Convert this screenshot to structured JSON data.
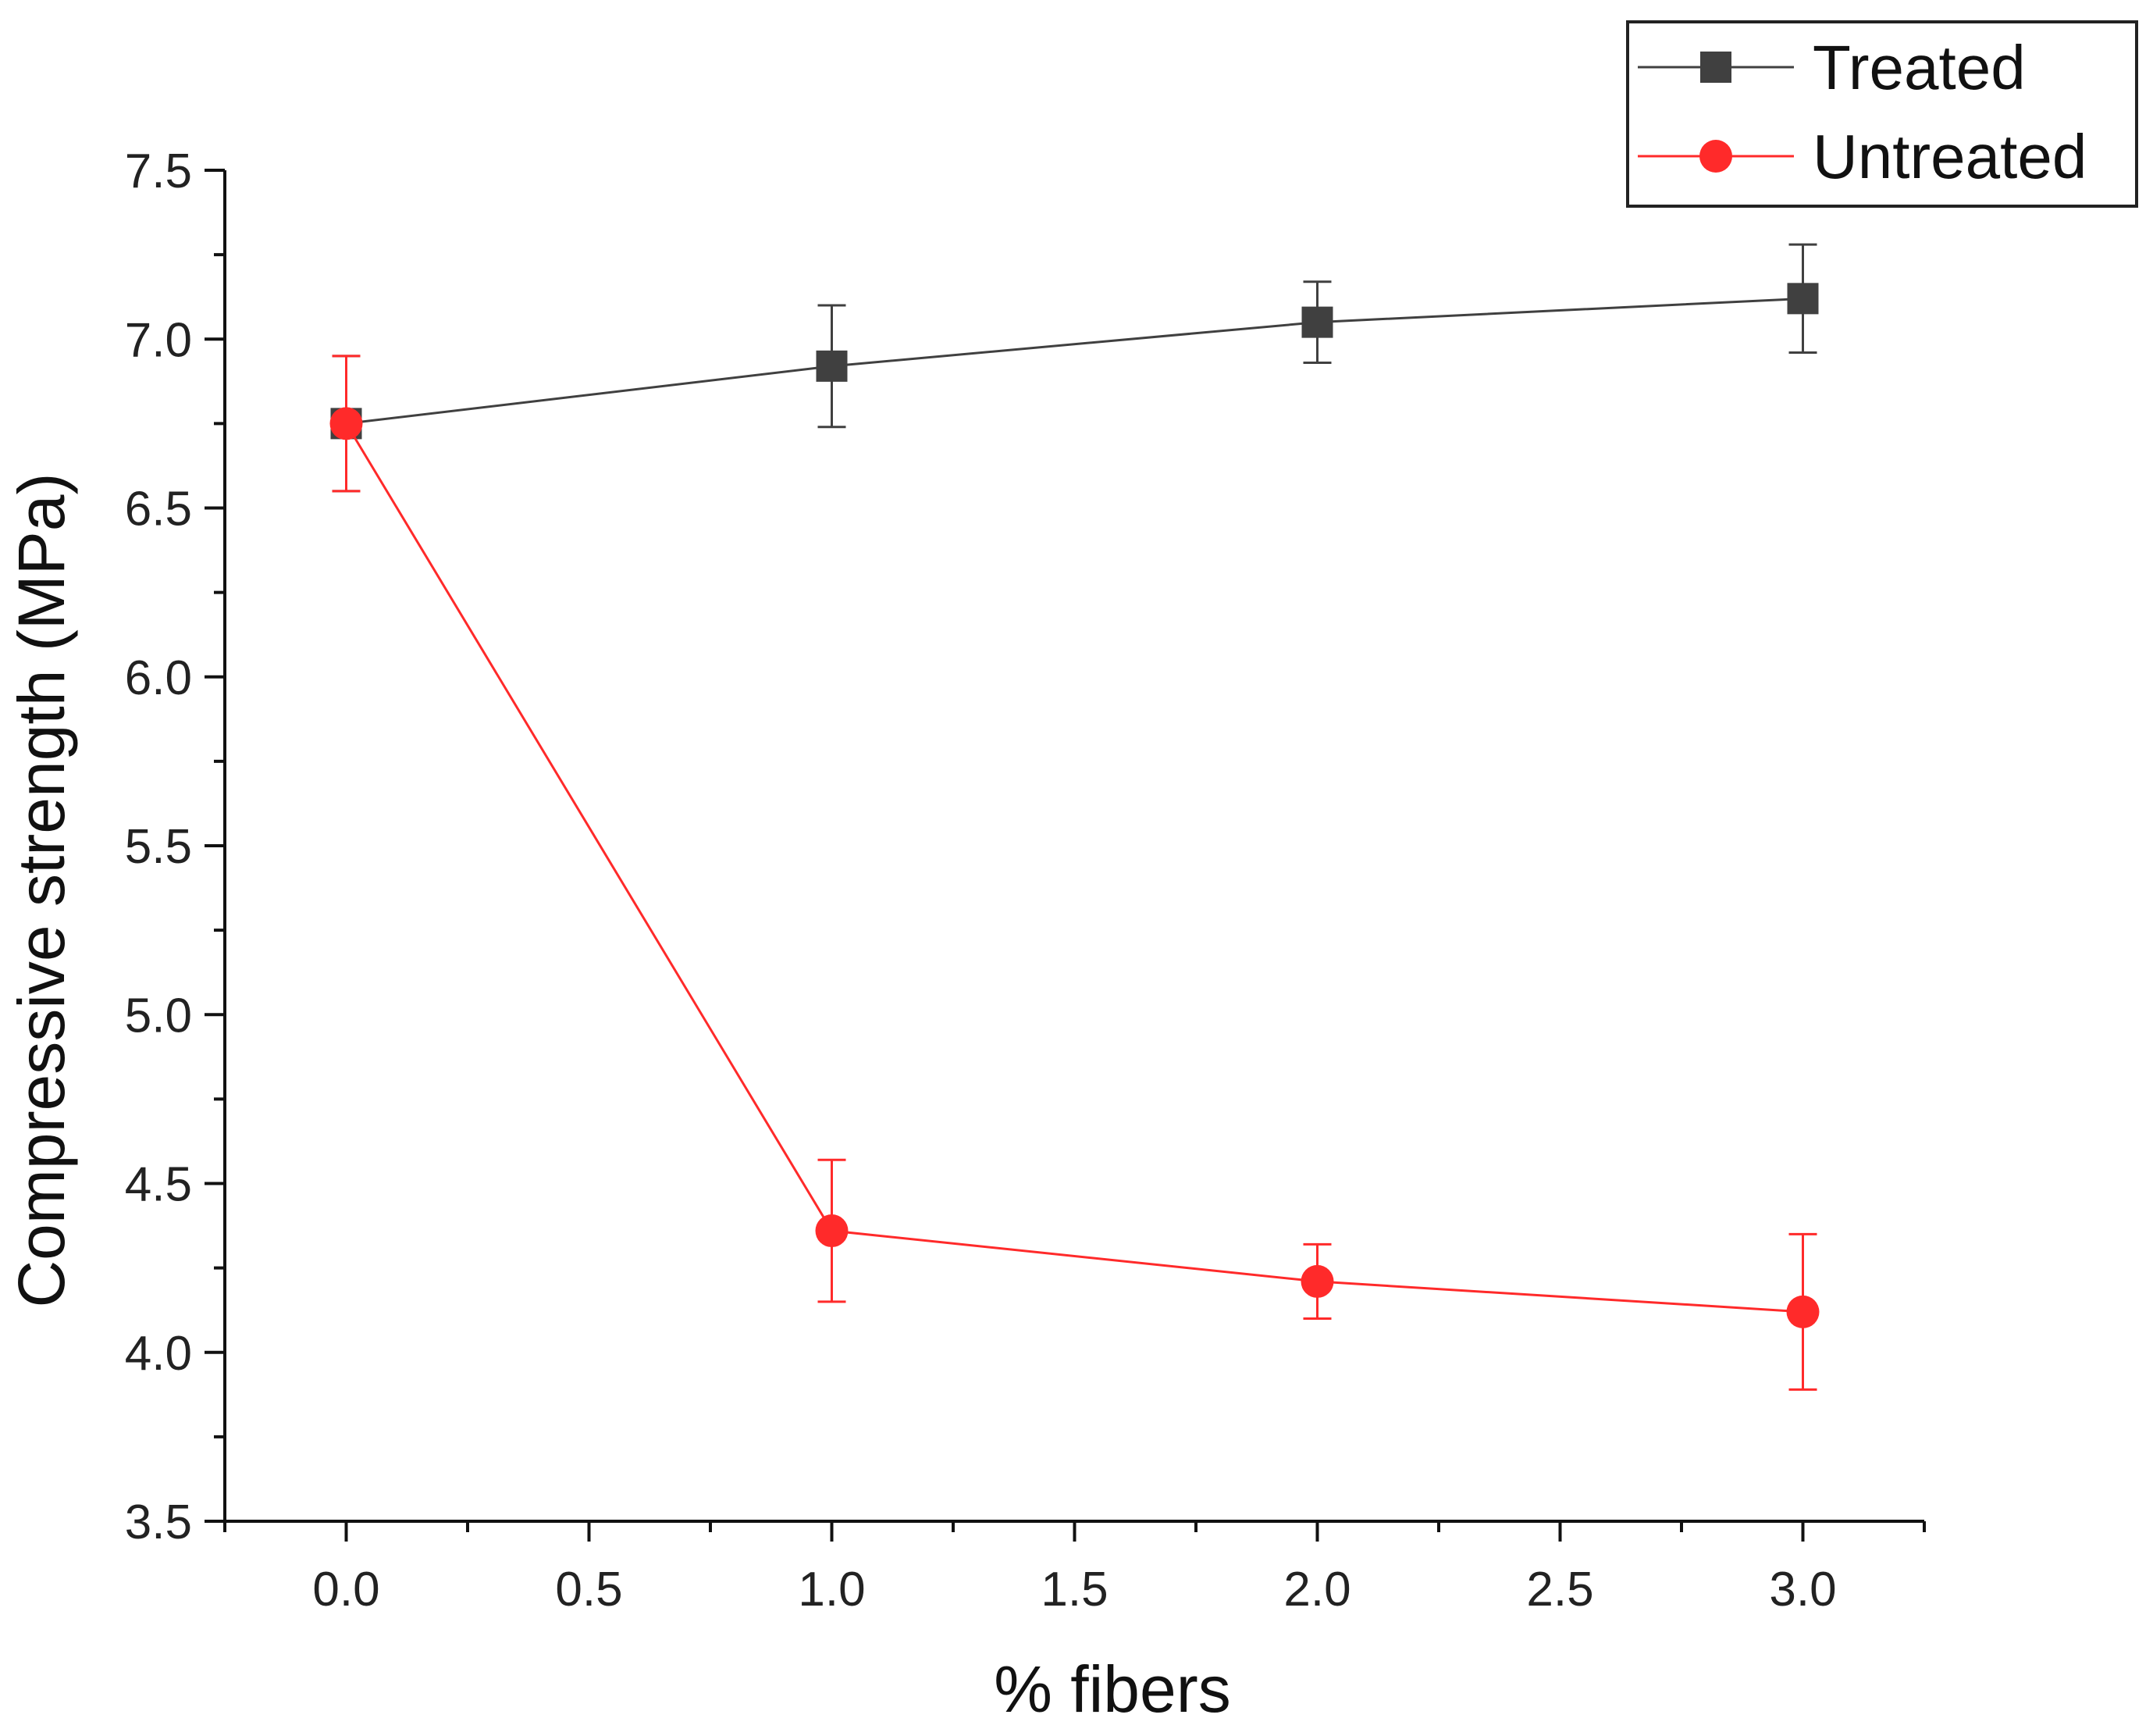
{
  "chart_data": {
    "type": "line",
    "title": "",
    "xlabel": "% fibers",
    "ylabel": "Compressive strength (MPa)",
    "xlim": [
      -0.25,
      3.25
    ],
    "ylim": [
      3.5,
      7.5
    ],
    "x_ticks": [
      "0.0",
      "0.5",
      "1.0",
      "1.5",
      "2.0",
      "2.5",
      "3.0"
    ],
    "x_tick_values": [
      0.0,
      0.5,
      1.0,
      1.5,
      2.0,
      2.5,
      3.0
    ],
    "y_ticks": [
      "3.5",
      "4.0",
      "4.5",
      "5.0",
      "5.5",
      "6.0",
      "6.5",
      "7.0",
      "7.5"
    ],
    "y_tick_values": [
      3.5,
      4.0,
      4.5,
      5.0,
      5.5,
      6.0,
      6.5,
      7.0,
      7.5
    ],
    "legend_position": "top-right",
    "grid": false,
    "series": [
      {
        "name": "Treated",
        "color": "#404040",
        "marker": "square",
        "x": [
          0,
          1,
          2,
          3
        ],
        "values": [
          6.75,
          6.92,
          7.05,
          7.12
        ],
        "errors": [
          0.2,
          0.18,
          0.12,
          0.16
        ]
      },
      {
        "name": "Untreated",
        "color": "#ff2a2a",
        "marker": "circle",
        "x": [
          0,
          1,
          2,
          3
        ],
        "values": [
          6.75,
          4.36,
          4.21,
          4.12
        ],
        "errors": [
          0.2,
          0.21,
          0.11,
          0.23
        ]
      }
    ]
  }
}
